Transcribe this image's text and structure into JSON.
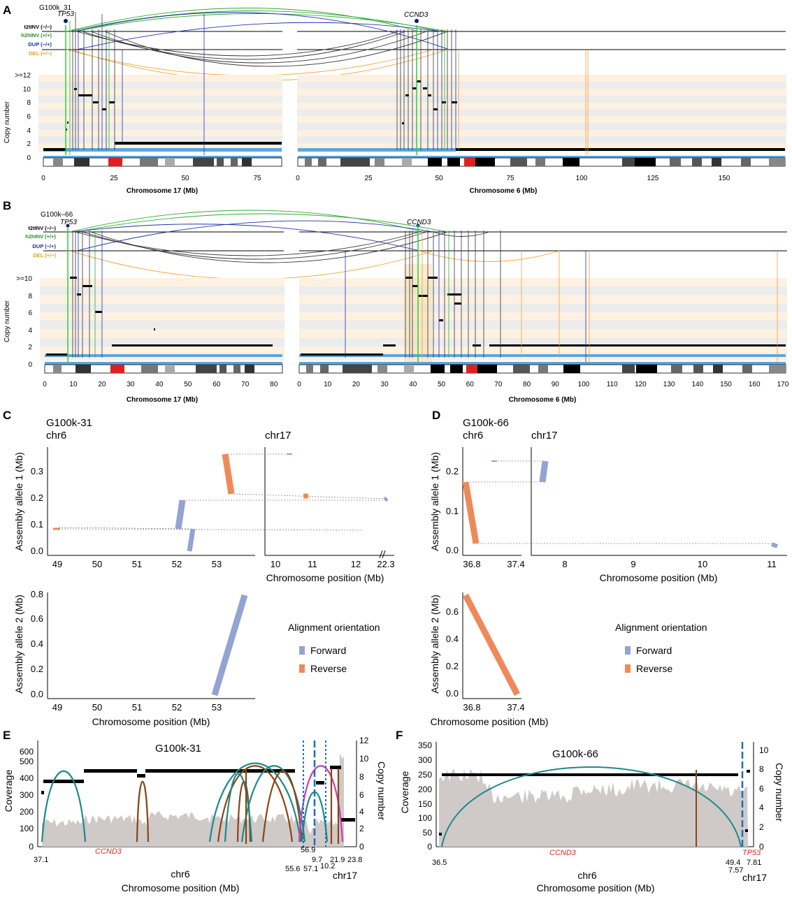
{
  "panel_letters": [
    "A",
    "B",
    "C",
    "D",
    "E",
    "F"
  ],
  "sv_legend": [
    {
      "label": "t2tINV (−/−)",
      "color": "#000000"
    },
    {
      "label": "h2hINV (+/+)",
      "color": "#2e8b2e"
    },
    {
      "label": "DUP (−/+)",
      "color": "#1f2fa0"
    },
    {
      "label": "DEL (+/−)",
      "color": "#e8a020"
    }
  ],
  "colors": {
    "black": "#000000",
    "green": "#33cc33",
    "blue": "#2233aa",
    "orange": "#f0a030",
    "lightblue": "#5aa6e0",
    "red": "#e02020",
    "forward": "#94a3d2",
    "reverse": "#ee8a5a",
    "coverage": "#cfc9c8",
    "teal": "#1b8a8a",
    "brown": "#8b4513",
    "magenta": "#c040c0",
    "gene_red": "#cc3322"
  },
  "chart_data": [
    {
      "panel": "A",
      "type": "genome_copy_number",
      "sample": "G100k_31",
      "genes": [
        "TP53",
        "CCND3"
      ],
      "ylabel": "Copy number",
      "y_ticks": [
        "0",
        "2",
        "4",
        "6",
        "8",
        "10",
        ">=12"
      ],
      "chr17": {
        "xlabel": "Chromosome 17 (Mb)",
        "xticks": [
          "0",
          "25",
          "50",
          "75"
        ],
        "xlim": [
          0,
          85
        ]
      },
      "chr6": {
        "xlabel": "Chromosome 6 (Mb)",
        "xticks": [
          "0",
          "25",
          "50",
          "75",
          "100",
          "125",
          "150"
        ],
        "xlim": [
          0,
          171
        ]
      }
    },
    {
      "panel": "B",
      "type": "genome_copy_number",
      "sample": "G100k–66",
      "genes": [
        "TP53",
        "CCND3"
      ],
      "ylabel": "Copy number",
      "y_ticks": [
        "0",
        "2",
        "4",
        "6",
        "8",
        ">=10"
      ],
      "chr17": {
        "xlabel": "Chromosome 17 (Mb)",
        "xticks": [
          "0",
          "10",
          "20",
          "30",
          "40",
          "50",
          "60",
          "70",
          "80"
        ],
        "xlim": [
          0,
          83
        ]
      },
      "chr6": {
        "xlabel": "Chromosome 6 (Mb)",
        "xticks": [
          "0",
          "10",
          "20",
          "30",
          "40",
          "50",
          "60",
          "70",
          "80",
          "90",
          "100",
          "110",
          "120",
          "130",
          "140",
          "150",
          "160",
          "170"
        ],
        "xlim": [
          0,
          171
        ]
      }
    },
    {
      "panel": "C",
      "type": "dotplot",
      "sample": "G100k-31",
      "chr_left": "chr6",
      "chr_right": "chr17",
      "ylabel_top": "Assembly allele 1 (Mb)",
      "ylabel_bottom": "Assembly allele 2 (Mb)",
      "y_ticks_top": [
        "0.0",
        "0.1",
        "0.2",
        "0.3"
      ],
      "y_ticks_bottom": [
        "0.0",
        "0.2",
        "0.4",
        "0.6",
        "0.8"
      ],
      "x_ticks_left": [
        "49",
        "50",
        "51",
        "52",
        "53"
      ],
      "x_ticks_right": [
        "10",
        "11",
        "12",
        "22.3"
      ],
      "xlabel": "Chromosome position (Mb)",
      "segments_top": [
        {
          "chr": "chr6",
          "x": [
            53.3,
            53.1
          ],
          "y": [
            0.22,
            0.37
          ],
          "orientation": "Reverse"
        },
        {
          "chr": "chr6",
          "x": [
            52.0,
            52.2
          ],
          "y": [
            0.09,
            0.19
          ],
          "orientation": "Forward"
        },
        {
          "chr": "chr6",
          "x": [
            52.3,
            52.4
          ],
          "y": [
            0.01,
            0.06
          ],
          "orientation": "Forward"
        },
        {
          "chr": "chr6",
          "x": [
            48.9,
            49.1
          ],
          "y": [
            0.08,
            0.08
          ],
          "orientation": "Reverse"
        },
        {
          "chr": "chr17",
          "x": [
            10.7,
            10.8
          ],
          "y": [
            0.2,
            0.21
          ],
          "orientation": "Reverse"
        },
        {
          "chr": "chr17",
          "x": [
            10.3,
            10.4
          ],
          "y": [
            0.37,
            0.37
          ],
          "orientation": "Forward"
        }
      ],
      "segments_bottom": [
        {
          "chr": "chr6",
          "x": [
            52.9,
            53.7
          ],
          "y": [
            0.0,
            0.8
          ],
          "orientation": "Forward"
        }
      ]
    },
    {
      "panel": "D",
      "type": "dotplot",
      "sample": "G100k-66",
      "chr_left": "chr6",
      "chr_right": "chr17",
      "ylabel_top": "Assembly allele 1 (Mb)",
      "ylabel_bottom": "Assembly allele 2 (Mb)",
      "y_ticks_top": [
        "0.0",
        "0.1",
        "0.2"
      ],
      "y_ticks_bottom": [
        "0.0",
        "0.2",
        "0.4",
        "0.6"
      ],
      "x_ticks_left": [
        "36.8",
        "37.4"
      ],
      "x_ticks_right": [
        "8",
        "9",
        "10",
        "11"
      ],
      "xlabel": "Chromosome position (Mb)",
      "segments_top": [
        {
          "chr": "chr6",
          "x": [
            36.76,
            36.84
          ],
          "y": [
            0.17,
            0.01
          ],
          "orientation": "Reverse"
        },
        {
          "chr": "chr17",
          "x": [
            7.7,
            7.75
          ],
          "y": [
            0.17,
            0.22
          ],
          "orientation": "Forward"
        },
        {
          "chr": "chr17",
          "x": [
            11.0,
            11.1
          ],
          "y": [
            0.01,
            0.0
          ],
          "orientation": "Forward"
        }
      ],
      "segments_bottom": [
        {
          "chr": "chr6",
          "x": [
            36.76,
            37.4
          ],
          "y": [
            0.73,
            0.0
          ],
          "orientation": "Reverse"
        }
      ]
    },
    {
      "panel": "E",
      "type": "coverage",
      "sample": "G100k-31",
      "gene": "CCND3",
      "ylabel_left": "Coverage",
      "ylabel_right": "Copy number",
      "y_ticks_left": [
        "0",
        "100",
        "200",
        "300",
        "400",
        "500",
        "600"
      ],
      "y_ticks_right": [
        "0",
        "2",
        "4",
        "6",
        "8",
        "10",
        "12"
      ],
      "x_ticks": [
        "37.1",
        "56.9",
        "55.6",
        "9.7",
        "57.1",
        "10.2",
        "21.9",
        "23.8"
      ],
      "chr_left": "chr6",
      "chr_right": "chr17",
      "xlabel": "Chromosome position (Mb)"
    },
    {
      "panel": "F",
      "type": "coverage",
      "sample": "G100k-66",
      "genes": [
        "CCND3",
        "TP53"
      ],
      "ylabel_left": "Coverage",
      "ylabel_right": "Copy number",
      "y_ticks_left": [
        "0",
        "50",
        "100",
        "150",
        "200",
        "250",
        "300",
        "350"
      ],
      "y_ticks_right": [
        "0",
        "2",
        "4",
        "6",
        "8",
        "10"
      ],
      "x_ticks": [
        "36.5",
        "49.4",
        "7.57",
        "7.81"
      ],
      "chr_left": "chr6",
      "chr_right": "chr17",
      "xlabel": "Chromosome position (Mb)"
    }
  ],
  "orientation_legend": {
    "title": "Alignment orientation",
    "items": [
      "Forward",
      "Reverse"
    ]
  }
}
